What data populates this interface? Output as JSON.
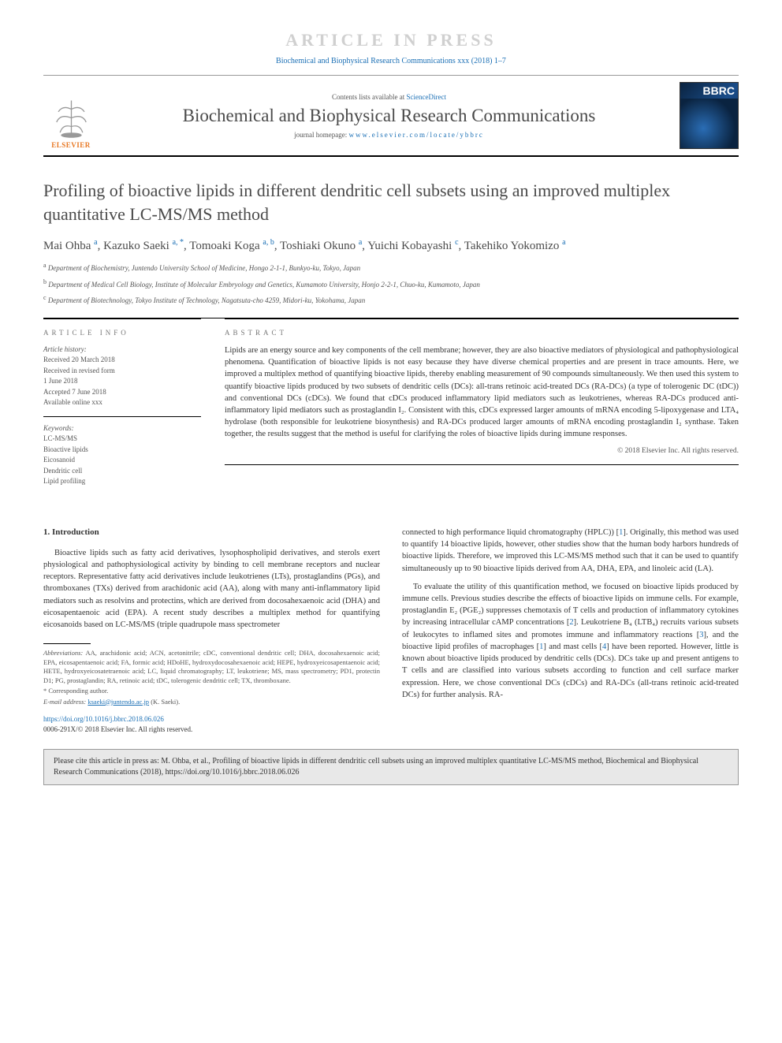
{
  "watermark": "ARTICLE IN PRESS",
  "journal_ref": "Biochemical and Biophysical Research Communications xxx (2018) 1–7",
  "header": {
    "contents_prefix": "Contents lists available at ",
    "contents_link": "ScienceDirect",
    "journal_name": "Biochemical and Biophysical Research Communications",
    "homepage_prefix": "journal homepage: ",
    "homepage_url": "www.elsevier.com/locate/ybbrc",
    "elsevier_label": "ELSEVIER",
    "bbrc_label": "BBRC"
  },
  "title": "Profiling of bioactive lipids in different dendritic cell subsets using an improved multiplex quantitative LC-MS/MS method",
  "authors_html": "Mai Ohba <sup>a</sup>, Kazuko Saeki <sup>a, *</sup>, Tomoaki Koga <sup>a, b</sup>, Toshiaki Okuno <sup>a</sup>, Yuichi Kobayashi <sup>c</sup>, Takehiko Yokomizo <sup>a</sup>",
  "affiliations": [
    {
      "sup": "a",
      "text": " Department of Biochemistry, Juntendo University School of Medicine, Hongo 2-1-1, Bunkyo-ku, Tokyo, Japan"
    },
    {
      "sup": "b",
      "text": " Department of Medical Cell Biology, Institute of Molecular Embryology and Genetics, Kumamoto University, Honjo 2-2-1, Chuo-ku, Kumamoto, Japan"
    },
    {
      "sup": "c",
      "text": " Department of Biotechnology, Tokyo Institute of Technology, Nagatsuta-cho 4259, Midori-ku, Yokohama, Japan"
    }
  ],
  "article_info": {
    "header": "ARTICLE INFO",
    "history_title": "Article history:",
    "history": "Received 20 March 2018\nReceived in revised form\n1 June 2018\nAccepted 7 June 2018\nAvailable online xxx",
    "keywords_title": "Keywords:",
    "keywords": "LC-MS/MS\nBioactive lipids\nEicosanoid\nDendritic cell\nLipid profiling"
  },
  "abstract": {
    "header": "ABSTRACT",
    "text": "Lipids are an energy source and key components of the cell membrane; however, they are also bioactive mediators of physiological and pathophysiological phenomena. Quantification of bioactive lipids is not easy because they have diverse chemical properties and are present in trace amounts. Here, we improved a multiplex method of quantifying bioactive lipids, thereby enabling measurement of 90 compounds simultaneously. We then used this system to quantify bioactive lipids produced by two subsets of dendritic cells (DCs): all-trans retinoic acid-treated DCs (RA-DCs) (a type of tolerogenic DC (tDC)) and conventional DCs (cDCs). We found that cDCs produced inflammatory lipid mediators such as leukotrienes, whereas RA-DCs produced anti-inflammatory lipid mediators such as prostaglandin I₂. Consistent with this, cDCs expressed larger amounts of mRNA encoding 5-lipoxygenase and LTA₄ hydrolase (both responsible for leukotriene biosynthesis) and RA-DCs produced larger amounts of mRNA encoding prostaglandin I₂ synthase. Taken together, the results suggest that the method is useful for clarifying the roles of bioactive lipids during immune responses.",
    "copyright": "© 2018 Elsevier Inc. All rights reserved."
  },
  "body": {
    "section_heading": "1. Introduction",
    "left_p1": "Bioactive lipids such as fatty acid derivatives, lysophospholipid derivatives, and sterols exert physiological and pathophysiological activity by binding to cell membrane receptors and nuclear receptors. Representative fatty acid derivatives include leukotrienes (LTs), prostaglandins (PGs), and thromboxanes (TXs) derived from arachidonic acid (AA), along with many anti-inflammatory lipid mediators such as resolvins and protectins, which are derived from docosahexaenoic acid (DHA) and eicosapentaenoic acid (EPA). A recent study describes a multiplex method for quantifying eicosanoids based on LC-MS/MS (triple quadrupole mass spectrometer",
    "right_p1": "connected to high performance liquid chromatography (HPLC)) [1]. Originally, this method was used to quantify 14 bioactive lipids, however, other studies show that the human body harbors hundreds of bioactive lipids. Therefore, we improved this LC-MS/MS method such that it can be used to quantify simultaneously up to 90 bioactive lipids derived from AA, DHA, EPA, and linoleic acid (LA).",
    "right_p2": "To evaluate the utility of this quantification method, we focused on bioactive lipids produced by immune cells. Previous studies describe the effects of bioactive lipids on immune cells. For example, prostaglandin E₂ (PGE₂) suppresses chemotaxis of T cells and production of inflammatory cytokines by increasing intracellular cAMP concentrations [2]. Leukotriene B₄ (LTB₄) recruits various subsets of leukocytes to inflamed sites and promotes immune and inflammatory reactions [3], and the bioactive lipid profiles of macrophages [1] and mast cells [4] have been reported. However, little is known about bioactive lipids produced by dendritic cells (DCs). DCs take up and present antigens to T cells and are classified into various subsets according to function and cell surface marker expression. Here, we chose conventional DCs (cDCs) and RA-DCs (all-trans retinoic acid-treated DCs) for further analysis. RA-"
  },
  "footnotes": {
    "abbrev_label": "Abbreviations:",
    "abbrev_text": " AA, arachidonic acid; ACN, acetonitrile; cDC, conventional dendritic cell; DHA, docosahexaenoic acid; EPA, eicosapentaenoic acid; FA, formic acid; HDoHE, hydroxydocosahexaenoic acid; HEPE, hydroxyeicosapentaenoic acid; HETE, hydroxyeicosatetraenoic acid; LC, liquid chromatography; LT, leukotriene; MS, mass spectrometry; PD1, protectin D1; PG, prostaglandin; RA, retinoic acid; tDC, tolerogenic dendritic cell; TX, thromboxane.",
    "corr_label": "* Corresponding author.",
    "email_label": "E-mail address: ",
    "email": "ksaeki@juntendo.ac.jp",
    "email_suffix": " (K. Saeki)."
  },
  "doi": {
    "url": "https://doi.org/10.1016/j.bbrc.2018.06.026",
    "issn": "0006-291X/© 2018 Elsevier Inc. All rights reserved."
  },
  "cite_box": "Please cite this article in press as: M. Ohba, et al., Profiling of bioactive lipids in different dendritic cell subsets using an improved multiplex quantitative LC-MS/MS method, Biochemical and Biophysical Research Communications (2018), https://doi.org/10.1016/j.bbrc.2018.06.026",
  "colors": {
    "link": "#1a6fb5",
    "elsevier_orange": "#e87722",
    "watermark": "#d0d0d0",
    "text": "#333333",
    "muted": "#555555",
    "cite_bg": "#e8e8e8"
  }
}
